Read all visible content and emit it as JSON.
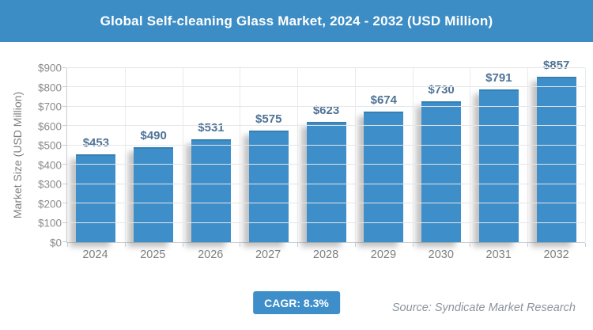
{
  "header": {
    "title": "Global Self-cleaning Glass Market, 2024 - 2032 (USD Million)"
  },
  "chart_data": {
    "type": "bar",
    "title": "Global Self-cleaning Glass Market, 2024 - 2032 (USD Million)",
    "categories": [
      "2024",
      "2025",
      "2026",
      "2027",
      "2028",
      "2029",
      "2030",
      "2031",
      "2032"
    ],
    "values": [
      453,
      490,
      531,
      575,
      623,
      674,
      730,
      791,
      857
    ],
    "bar_labels": [
      "$453",
      "$490",
      "$531",
      "$575",
      "$623",
      "$674",
      "$730",
      "$791",
      "$857"
    ],
    "xlabel": "",
    "ylabel": "Market Size (USD Million)",
    "ylim": [
      0,
      900
    ],
    "ytick_step": 100,
    "yticks": [
      "$0",
      "$100",
      "$200",
      "$300",
      "$400",
      "$500",
      "$600",
      "$700",
      "$800",
      "$900"
    ],
    "grid": true,
    "legend": "none",
    "bar_color": "#3d8ec9",
    "bar_label_color": "#4f7396"
  },
  "footer": {
    "cagr_label": "CAGR: 8.3%",
    "source": "Source: Syndicate Market Research"
  },
  "colors": {
    "accent": "#3c8dc5",
    "bar": "#3d8ec9",
    "bar_label": "#4f7396",
    "axis_text": "#8c8c8c",
    "gridline": "#e4e6e8",
    "source_text": "#8b959e",
    "badge_text": "#ffffff"
  }
}
